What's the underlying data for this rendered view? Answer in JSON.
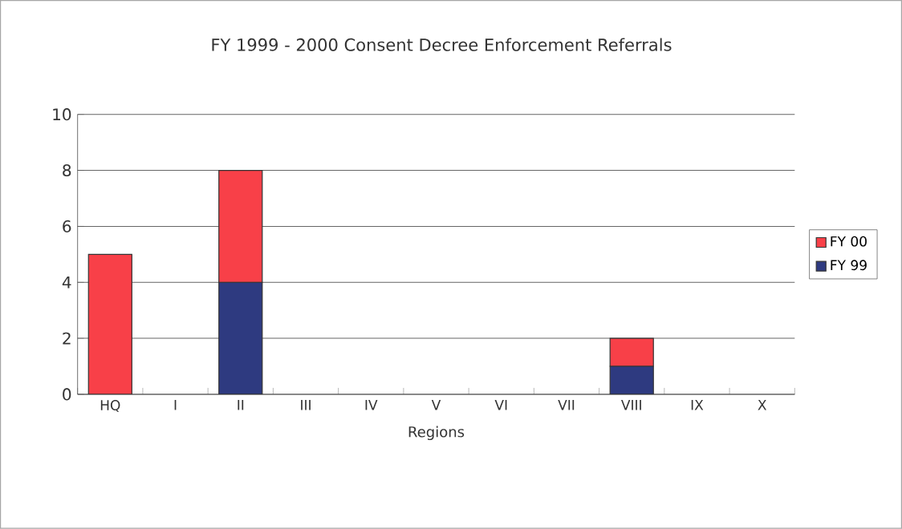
{
  "chart_data": {
    "type": "bar",
    "title": "FY 1999 - 2000 Consent Decree Enforcement Referrals",
    "xlabel": "Regions",
    "categories": [
      "HQ",
      "I",
      "II",
      "III",
      "IV",
      "V",
      "VI",
      "VII",
      "VIII",
      "IX",
      "X"
    ],
    "stacked": true,
    "series": [
      {
        "name": "FY 99",
        "color": "#2e3a80",
        "values": [
          0,
          0,
          4,
          0,
          0,
          0,
          0,
          0,
          1,
          0,
          0
        ]
      },
      {
        "name": "FY 00",
        "color": "#f84048",
        "values": [
          5,
          0,
          4,
          0,
          0,
          0,
          0,
          0,
          1,
          0,
          0
        ]
      }
    ],
    "ylim": [
      0,
      10
    ],
    "yticks": [
      0,
      2,
      4,
      6,
      8,
      10
    ],
    "grid": "y",
    "legend": "right"
  }
}
